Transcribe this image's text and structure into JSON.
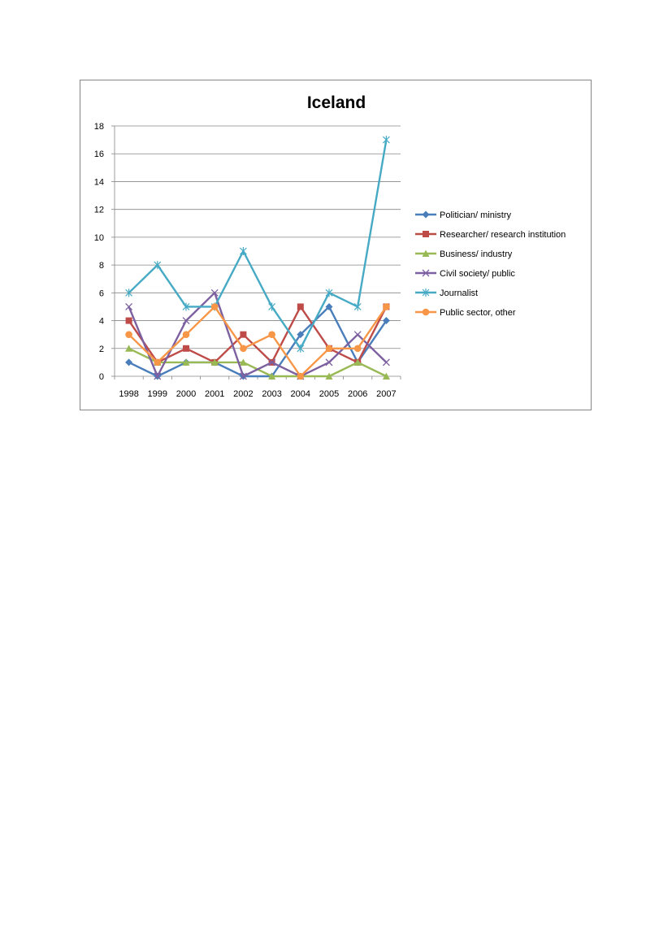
{
  "chart_data": {
    "type": "line",
    "title": "Iceland",
    "xlabel": "",
    "ylabel": "",
    "x": [
      "1998",
      "1999",
      "2000",
      "2001",
      "2002",
      "2003",
      "2004",
      "2005",
      "2006",
      "2007"
    ],
    "ylim": [
      0,
      18
    ],
    "yticks": [
      0,
      2,
      4,
      6,
      8,
      10,
      12,
      14,
      16,
      18
    ],
    "grid": "horizontal",
    "legend_position": "right",
    "series": [
      {
        "name": "Politician/ ministry",
        "color": "#4a7ebb",
        "marker": "diamond",
        "values": [
          1,
          0,
          1,
          1,
          0,
          0,
          3,
          5,
          1,
          4
        ]
      },
      {
        "name": "Researcher/ research institution",
        "color": "#be4b48",
        "marker": "square",
        "values": [
          4,
          1,
          2,
          1,
          3,
          1,
          5,
          2,
          1,
          5
        ]
      },
      {
        "name": "Business/ industry",
        "color": "#98b954",
        "marker": "triangle",
        "values": [
          2,
          1,
          1,
          1,
          1,
          0,
          0,
          0,
          1,
          0
        ]
      },
      {
        "name": "Civil society/ public",
        "color": "#7d60a0",
        "marker": "x",
        "values": [
          5,
          0,
          4,
          6,
          0,
          1,
          0,
          1,
          3,
          1
        ]
      },
      {
        "name": "Journalist",
        "color": "#46aac5",
        "marker": "star",
        "values": [
          6,
          8,
          5,
          5,
          9,
          5,
          2,
          6,
          5,
          17
        ]
      },
      {
        "name": "Public sector, other",
        "color": "#f79646",
        "marker": "circle",
        "values": [
          3,
          1,
          3,
          5,
          2,
          3,
          0,
          2,
          2,
          5
        ]
      }
    ]
  }
}
